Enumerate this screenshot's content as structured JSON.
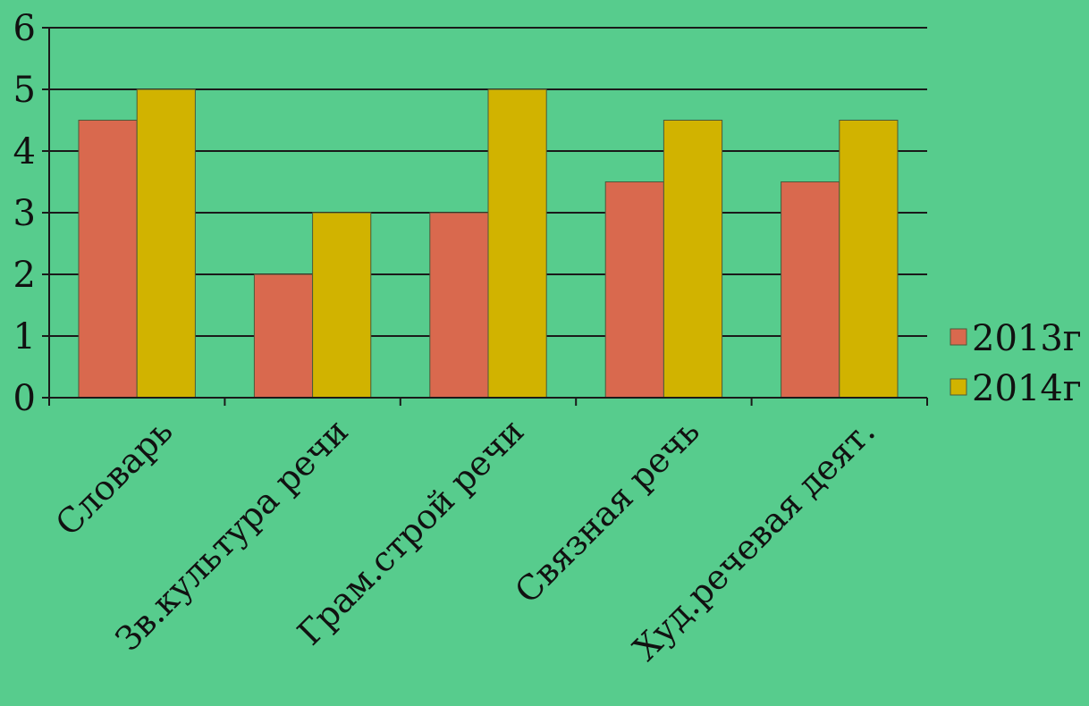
{
  "background": "#57cc8d",
  "chart_data": {
    "type": "bar",
    "categories": [
      "Словарь",
      "Зв.культура речи",
      "Грам.строй речи",
      "Связная речь",
      "Худ.речевая деят."
    ],
    "series": [
      {
        "name": "2013г",
        "values": [
          4.5,
          2,
          3,
          3.5,
          3.5
        ],
        "color": "#d9694e"
      },
      {
        "name": "2014г",
        "values": [
          5,
          3,
          5,
          4.5,
          4.5
        ],
        "color": "#d1b300"
      }
    ],
    "y_ticks": [
      "0",
      "1",
      "2",
      "3",
      "4",
      "5",
      "6"
    ],
    "ylim": [
      0,
      6
    ],
    "grid": true,
    "legend_position": "right"
  }
}
